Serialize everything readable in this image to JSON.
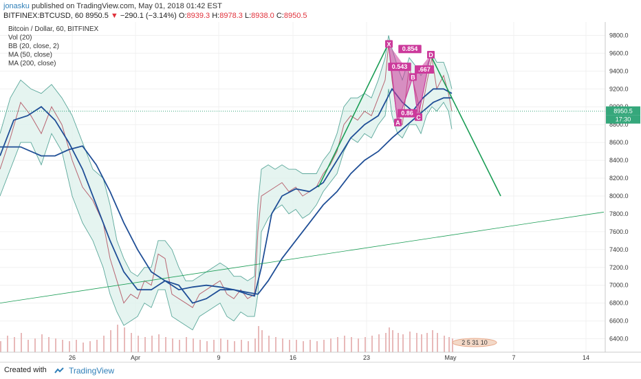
{
  "header": {
    "author": "jonasku",
    "published": "published on TradingView.com, May 01, 2018 01:42 EST",
    "symbol": "BITFINEX:BTCUSD, 60",
    "last": "8950.5",
    "arrow": "▼",
    "change": "−290.1 (−3.14%)",
    "o_label": "O:",
    "o": "8939.3",
    "h_label": "H:",
    "h": "8978.3",
    "l_label": "L:",
    "l": "8938.0",
    "c_label": "C:",
    "c": "8950.5"
  },
  "legend": [
    "Bitcoin / Dollar, 60, BITFINEX",
    "Vol (20)",
    "BB (20, close, 2)",
    "MA (50, close)",
    "MA (200, close)"
  ],
  "price_tag": {
    "value": "8950.5",
    "timer": "17:30"
  },
  "events_label": "2  5  31  10",
  "footer": {
    "created": "Created with",
    "brand": "TradingView"
  },
  "colors": {
    "ma": "#1f4e96",
    "bb": "#5aa79a",
    "bb_fill": "#dff1ec",
    "harmonic": "#cc3a9b",
    "trend": "#1a9d55",
    "price_tag": "#35a77b"
  },
  "chart_data": {
    "type": "line",
    "title": "Bitcoin / Dollar, 60, BITFINEX",
    "y_range": [
      6250,
      9950
    ],
    "y_ticks": [
      6400,
      6600,
      6800,
      7000,
      7200,
      7400,
      7600,
      7800,
      8000,
      8200,
      8400,
      8600,
      8800,
      9000,
      9200,
      9400,
      9600,
      9800
    ],
    "y_tick_labels": [
      "6400.0",
      "6600.0",
      "6800.0",
      "7000.0",
      "7200.0",
      "7400.0",
      "7600.0",
      "7800.0",
      "8000.0",
      "8200.0",
      "8400.0",
      "8600.0",
      "8800.0",
      "9000.0",
      "9200.0",
      "9400.0",
      "9600.0",
      "9800.0"
    ],
    "x_ticks": [
      {
        "label": "26",
        "x": 105
      },
      {
        "label": "Apr",
        "x": 197
      },
      {
        "label": "9",
        "x": 318
      },
      {
        "label": "16",
        "x": 426
      },
      {
        "label": "23",
        "x": 533
      },
      {
        "label": "May",
        "x": 655
      },
      {
        "label": "7",
        "x": 747
      },
      {
        "label": "14",
        "x": 852
      }
    ],
    "x_range": [
      0,
      878
    ],
    "price_series": [
      [
        0,
        8300
      ],
      [
        15,
        8650
      ],
      [
        30,
        9050
      ],
      [
        45,
        8900
      ],
      [
        60,
        8700
      ],
      [
        75,
        9000
      ],
      [
        90,
        8800
      ],
      [
        105,
        8400
      ],
      [
        120,
        8100
      ],
      [
        135,
        7950
      ],
      [
        150,
        7700
      ],
      [
        160,
        7300
      ],
      [
        170,
        7050
      ],
      [
        180,
        6800
      ],
      [
        190,
        6900
      ],
      [
        200,
        6850
      ],
      [
        210,
        7050
      ],
      [
        220,
        7000
      ],
      [
        230,
        7350
      ],
      [
        240,
        7300
      ],
      [
        250,
        6900
      ],
      [
        260,
        6850
      ],
      [
        270,
        6800
      ],
      [
        280,
        6750
      ],
      [
        290,
        6900
      ],
      [
        300,
        6950
      ],
      [
        310,
        7000
      ],
      [
        320,
        7050
      ],
      [
        330,
        6900
      ],
      [
        340,
        6850
      ],
      [
        350,
        6950
      ],
      [
        360,
        6850
      ],
      [
        370,
        6900
      ],
      [
        375,
        7600
      ],
      [
        380,
        8000
      ],
      [
        390,
        8050
      ],
      [
        400,
        8100
      ],
      [
        410,
        8150
      ],
      [
        420,
        8050
      ],
      [
        430,
        8100
      ],
      [
        440,
        8000
      ],
      [
        450,
        8050
      ],
      [
        460,
        8100
      ],
      [
        470,
        8250
      ],
      [
        480,
        8350
      ],
      [
        490,
        8500
      ],
      [
        500,
        8800
      ],
      [
        510,
        8900
      ],
      [
        520,
        8850
      ],
      [
        530,
        8950
      ],
      [
        540,
        8900
      ],
      [
        550,
        9100
      ],
      [
        560,
        9300
      ],
      [
        565,
        9700
      ],
      [
        570,
        9300
      ],
      [
        578,
        8850
      ],
      [
        585,
        8800
      ],
      [
        595,
        9450
      ],
      [
        605,
        9150
      ],
      [
        612,
        8900
      ],
      [
        620,
        9250
      ],
      [
        628,
        9550
      ],
      [
        635,
        9200
      ],
      [
        645,
        9350
      ],
      [
        652,
        9150
      ],
      [
        657,
        8950
      ]
    ],
    "ma50_series": [
      [
        0,
        8450
      ],
      [
        20,
        8850
      ],
      [
        40,
        8900
      ],
      [
        60,
        9000
      ],
      [
        80,
        8850
      ],
      [
        100,
        8600
      ],
      [
        120,
        8300
      ],
      [
        140,
        7900
      ],
      [
        160,
        7500
      ],
      [
        180,
        7150
      ],
      [
        200,
        6950
      ],
      [
        220,
        6950
      ],
      [
        240,
        7050
      ],
      [
        260,
        7000
      ],
      [
        280,
        6800
      ],
      [
        300,
        6850
      ],
      [
        320,
        6950
      ],
      [
        340,
        6950
      ],
      [
        360,
        6900
      ],
      [
        370,
        6880
      ],
      [
        380,
        7200
      ],
      [
        395,
        7800
      ],
      [
        410,
        8000
      ],
      [
        430,
        8080
      ],
      [
        450,
        8050
      ],
      [
        470,
        8150
      ],
      [
        490,
        8400
      ],
      [
        510,
        8650
      ],
      [
        530,
        8800
      ],
      [
        550,
        8900
      ],
      [
        570,
        9200
      ],
      [
        585,
        9050
      ],
      [
        600,
        8950
      ],
      [
        615,
        9100
      ],
      [
        630,
        9200
      ],
      [
        645,
        9200
      ],
      [
        657,
        9150
      ]
    ],
    "ma200_series": [
      [
        0,
        8550
      ],
      [
        30,
        8550
      ],
      [
        60,
        8450
      ],
      [
        80,
        8450
      ],
      [
        100,
        8520
      ],
      [
        120,
        8560
      ],
      [
        140,
        8350
      ],
      [
        160,
        8050
      ],
      [
        180,
        7700
      ],
      [
        200,
        7400
      ],
      [
        220,
        7150
      ],
      [
        240,
        7050
      ],
      [
        260,
        6950
      ],
      [
        280,
        6980
      ],
      [
        300,
        7000
      ],
      [
        320,
        6980
      ],
      [
        340,
        6950
      ],
      [
        360,
        6920
      ],
      [
        375,
        6900
      ],
      [
        390,
        7050
      ],
      [
        410,
        7300
      ],
      [
        430,
        7500
      ],
      [
        450,
        7700
      ],
      [
        470,
        7900
      ],
      [
        490,
        8050
      ],
      [
        510,
        8250
      ],
      [
        530,
        8400
      ],
      [
        550,
        8500
      ],
      [
        570,
        8650
      ],
      [
        585,
        8750
      ],
      [
        600,
        8850
      ],
      [
        615,
        8950
      ],
      [
        630,
        9050
      ],
      [
        645,
        9100
      ],
      [
        657,
        9100
      ]
    ],
    "bb_upper": [
      [
        0,
        8700
      ],
      [
        15,
        9100
      ],
      [
        30,
        9300
      ],
      [
        45,
        9200
      ],
      [
        60,
        9150
      ],
      [
        75,
        9250
      ],
      [
        90,
        9100
      ],
      [
        105,
        8900
      ],
      [
        120,
        8600
      ],
      [
        135,
        8300
      ],
      [
        150,
        8200
      ],
      [
        160,
        7900
      ],
      [
        170,
        7500
      ],
      [
        180,
        7300
      ],
      [
        190,
        7150
      ],
      [
        200,
        7100
      ],
      [
        210,
        7200
      ],
      [
        220,
        7200
      ],
      [
        230,
        7500
      ],
      [
        240,
        7500
      ],
      [
        250,
        7400
      ],
      [
        260,
        7200
      ],
      [
        270,
        7050
      ],
      [
        280,
        7050
      ],
      [
        290,
        7100
      ],
      [
        300,
        7150
      ],
      [
        310,
        7200
      ],
      [
        320,
        7250
      ],
      [
        330,
        7200
      ],
      [
        340,
        7100
      ],
      [
        350,
        7100
      ],
      [
        360,
        7050
      ],
      [
        370,
        7100
      ],
      [
        375,
        7900
      ],
      [
        380,
        8300
      ],
      [
        390,
        8350
      ],
      [
        400,
        8300
      ],
      [
        410,
        8350
      ],
      [
        420,
        8300
      ],
      [
        430,
        8300
      ],
      [
        440,
        8250
      ],
      [
        450,
        8250
      ],
      [
        460,
        8250
      ],
      [
        470,
        8400
      ],
      [
        480,
        8500
      ],
      [
        490,
        8700
      ],
      [
        500,
        9000
      ],
      [
        510,
        9100
      ],
      [
        520,
        9100
      ],
      [
        530,
        9150
      ],
      [
        540,
        9100
      ],
      [
        550,
        9300
      ],
      [
        560,
        9550
      ],
      [
        565,
        9800
      ],
      [
        570,
        9650
      ],
      [
        578,
        9450
      ],
      [
        585,
        9300
      ],
      [
        595,
        9550
      ],
      [
        605,
        9450
      ],
      [
        612,
        9350
      ],
      [
        620,
        9450
      ],
      [
        628,
        9600
      ],
      [
        635,
        9500
      ],
      [
        645,
        9500
      ],
      [
        652,
        9350
      ],
      [
        657,
        9200
      ]
    ],
    "bb_lower": [
      [
        0,
        8000
      ],
      [
        15,
        8300
      ],
      [
        30,
        8600
      ],
      [
        45,
        8600
      ],
      [
        60,
        8350
      ],
      [
        75,
        8700
      ],
      [
        90,
        8500
      ],
      [
        105,
        8000
      ],
      [
        120,
        7700
      ],
      [
        135,
        7500
      ],
      [
        150,
        7200
      ],
      [
        160,
        6900
      ],
      [
        170,
        6700
      ],
      [
        180,
        6550
      ],
      [
        190,
        6600
      ],
      [
        200,
        6650
      ],
      [
        210,
        6800
      ],
      [
        220,
        6750
      ],
      [
        230,
        6950
      ],
      [
        240,
        6950
      ],
      [
        250,
        6650
      ],
      [
        260,
        6600
      ],
      [
        270,
        6550
      ],
      [
        280,
        6500
      ],
      [
        290,
        6650
      ],
      [
        300,
        6700
      ],
      [
        310,
        6750
      ],
      [
        320,
        6800
      ],
      [
        330,
        6650
      ],
      [
        340,
        6600
      ],
      [
        350,
        6700
      ],
      [
        360,
        6650
      ],
      [
        370,
        6650
      ],
      [
        375,
        6900
      ],
      [
        380,
        7600
      ],
      [
        390,
        7750
      ],
      [
        400,
        7850
      ],
      [
        410,
        7900
      ],
      [
        420,
        7800
      ],
      [
        430,
        7850
      ],
      [
        440,
        7750
      ],
      [
        450,
        7800
      ],
      [
        460,
        7900
      ],
      [
        470,
        8050
      ],
      [
        480,
        8150
      ],
      [
        490,
        8250
      ],
      [
        500,
        8500
      ],
      [
        510,
        8650
      ],
      [
        520,
        8600
      ],
      [
        530,
        8700
      ],
      [
        540,
        8650
      ],
      [
        550,
        8800
      ],
      [
        560,
        8900
      ],
      [
        565,
        9200
      ],
      [
        570,
        8900
      ],
      [
        578,
        8700
      ],
      [
        585,
        8650
      ],
      [
        595,
        8800
      ],
      [
        605,
        8800
      ],
      [
        612,
        8700
      ],
      [
        620,
        8900
      ],
      [
        628,
        9000
      ],
      [
        635,
        8950
      ],
      [
        645,
        9050
      ],
      [
        652,
        8950
      ],
      [
        657,
        8750
      ]
    ],
    "volume_series": [
      [
        0,
        40
      ],
      [
        10,
        60
      ],
      [
        20,
        55
      ],
      [
        30,
        70
      ],
      [
        40,
        45
      ],
      [
        50,
        50
      ],
      [
        60,
        65
      ],
      [
        70,
        55
      ],
      [
        80,
        50
      ],
      [
        90,
        45
      ],
      [
        100,
        40
      ],
      [
        110,
        45
      ],
      [
        120,
        35
      ],
      [
        130,
        40
      ],
      [
        140,
        45
      ],
      [
        150,
        60
      ],
      [
        160,
        80
      ],
      [
        170,
        100
      ],
      [
        180,
        90
      ],
      [
        190,
        70
      ],
      [
        200,
        60
      ],
      [
        210,
        55
      ],
      [
        220,
        60
      ],
      [
        230,
        65
      ],
      [
        240,
        55
      ],
      [
        250,
        50
      ],
      [
        260,
        45
      ],
      [
        270,
        55
      ],
      [
        280,
        50
      ],
      [
        290,
        45
      ],
      [
        300,
        40
      ],
      [
        310,
        45
      ],
      [
        320,
        50
      ],
      [
        330,
        45
      ],
      [
        340,
        40
      ],
      [
        350,
        45
      ],
      [
        360,
        40
      ],
      [
        370,
        50
      ],
      [
        375,
        95
      ],
      [
        380,
        80
      ],
      [
        390,
        60
      ],
      [
        400,
        55
      ],
      [
        410,
        50
      ],
      [
        420,
        45
      ],
      [
        430,
        45
      ],
      [
        440,
        40
      ],
      [
        450,
        45
      ],
      [
        460,
        40
      ],
      [
        470,
        45
      ],
      [
        480,
        50
      ],
      [
        490,
        55
      ],
      [
        500,
        60
      ],
      [
        510,
        55
      ],
      [
        520,
        50
      ],
      [
        530,
        55
      ],
      [
        540,
        60
      ],
      [
        550,
        65
      ],
      [
        560,
        70
      ],
      [
        565,
        90
      ],
      [
        570,
        80
      ],
      [
        578,
        70
      ],
      [
        585,
        65
      ],
      [
        595,
        75
      ],
      [
        605,
        70
      ],
      [
        612,
        65
      ],
      [
        620,
        70
      ],
      [
        628,
        80
      ],
      [
        635,
        70
      ],
      [
        645,
        60
      ],
      [
        652,
        55
      ],
      [
        657,
        50
      ]
    ],
    "harmonic_pattern": {
      "points": [
        {
          "label": "X",
          "x": 565,
          "y": 9700
        },
        {
          "label": "A",
          "x": 578,
          "y": 8820
        },
        {
          "label": "B",
          "x": 600,
          "y": 9330
        },
        {
          "label": "C",
          "x": 608,
          "y": 8880
        },
        {
          "label": "D",
          "x": 626,
          "y": 9580
        }
      ],
      "ratios": [
        {
          "text": "0.543",
          "x": 581,
          "y": 9440
        },
        {
          "text": "0.86",
          "x": 592,
          "y": 8920
        },
        {
          "text": ".667",
          "x": 617,
          "y": 9410
        },
        {
          "text": "0.854",
          "x": 596,
          "y": 9640
        }
      ]
    },
    "trend_lines": [
      {
        "points": [
          [
            463,
            8100
          ],
          [
            565,
            9710
          ]
        ]
      },
      {
        "points": [
          [
            626,
            9580
          ],
          [
            728,
            8000
          ]
        ]
      },
      {
        "points": [
          [
            0,
            6800
          ],
          [
            878,
            7820
          ]
        ]
      }
    ],
    "current_price": 8950.5
  }
}
